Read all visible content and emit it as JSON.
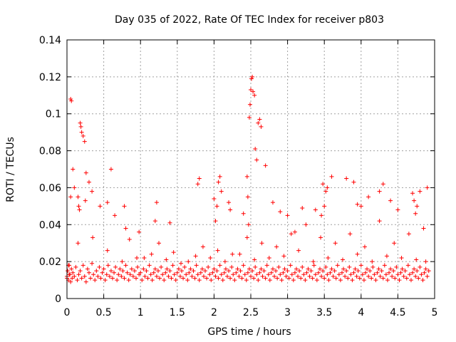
{
  "chart_data": {
    "type": "scatter",
    "title": "Day 035 of 2022, Rate Of TEC Index for receiver p803",
    "xlabel": "GPS time / hours",
    "ylabel": "ROTI / TECUs",
    "xlim": [
      0,
      5
    ],
    "ylim": [
      0,
      0.14
    ],
    "xticks": [
      0,
      0.5,
      1,
      1.5,
      2,
      2.5,
      3,
      3.5,
      4,
      4.5,
      5
    ],
    "xtick_labels": [
      "0",
      "0.5",
      "1",
      "1.5",
      "2",
      "2.5",
      "3",
      "3.5",
      "4",
      "4.5",
      "5"
    ],
    "yticks": [
      0,
      0.02,
      0.04,
      0.06,
      0.08,
      0.1,
      0.12,
      0.14
    ],
    "ytick_labels": [
      "0",
      "0.02",
      "0.04",
      "0.06",
      "0.08",
      "0.1",
      "0.12",
      "0.14"
    ],
    "grid": true,
    "marker": "+",
    "color": "#ff0000",
    "series": [
      {
        "name": "p803",
        "x": [
          0.0,
          0.01,
          0.02,
          0.03,
          0.04,
          0.05,
          0.06,
          0.07,
          0.08,
          0.1,
          0.12,
          0.14,
          0.16,
          0.18,
          0.2,
          0.22,
          0.24,
          0.26,
          0.28,
          0.3,
          0.32,
          0.34,
          0.36,
          0.38,
          0.4,
          0.42,
          0.44,
          0.46,
          0.48,
          0.5,
          0.52,
          0.54,
          0.56,
          0.58,
          0.6,
          0.62,
          0.64,
          0.66,
          0.68,
          0.7,
          0.72,
          0.74,
          0.76,
          0.78,
          0.8,
          0.82,
          0.84,
          0.86,
          0.88,
          0.9,
          0.92,
          0.94,
          0.96,
          0.98,
          1.0,
          1.02,
          1.04,
          1.06,
          1.08,
          1.1,
          1.12,
          1.14,
          1.16,
          1.18,
          1.2,
          1.22,
          1.24,
          1.26,
          1.28,
          1.3,
          1.32,
          1.34,
          1.36,
          1.38,
          1.4,
          1.42,
          1.44,
          1.46,
          1.48,
          1.5,
          1.52,
          1.54,
          1.56,
          1.58,
          1.6,
          1.62,
          1.64,
          1.66,
          1.68,
          1.7,
          1.72,
          1.74,
          1.76,
          1.78,
          1.8,
          1.82,
          1.84,
          1.86,
          1.88,
          1.9,
          1.92,
          1.94,
          1.96,
          1.98,
          2.0,
          2.02,
          2.04,
          2.06,
          2.08,
          2.1,
          2.12,
          2.14,
          2.16,
          2.18,
          2.2,
          2.22,
          2.24,
          2.26,
          2.28,
          2.3,
          2.32,
          2.34,
          2.36,
          2.38,
          2.4,
          2.42,
          2.44,
          2.46,
          2.48,
          2.5,
          2.52,
          2.54,
          2.56,
          2.58,
          2.6,
          2.62,
          2.64,
          2.66,
          2.68,
          2.7,
          2.72,
          2.74,
          2.76,
          2.78,
          2.8,
          2.82,
          2.84,
          2.86,
          2.88,
          2.9,
          2.92,
          2.94,
          2.96,
          2.98,
          3.0,
          3.02,
          3.04,
          3.06,
          3.08,
          3.1,
          3.12,
          3.14,
          3.16,
          3.18,
          3.2,
          3.22,
          3.24,
          3.26,
          3.28,
          3.3,
          3.32,
          3.34,
          3.36,
          3.38,
          3.4,
          3.42,
          3.44,
          3.46,
          3.48,
          3.5,
          3.52,
          3.54,
          3.56,
          3.58,
          3.6,
          3.62,
          3.64,
          3.66,
          3.68,
          3.7,
          3.72,
          3.74,
          3.76,
          3.78,
          3.8,
          3.82,
          3.84,
          3.86,
          3.88,
          3.9,
          3.92,
          3.94,
          3.96,
          3.98,
          4.0,
          4.02,
          4.04,
          4.06,
          4.08,
          4.1,
          4.12,
          4.14,
          4.16,
          4.18,
          4.2,
          4.22,
          4.24,
          4.26,
          4.28,
          4.3,
          4.32,
          4.34,
          4.36,
          4.38,
          4.4,
          4.42,
          4.44,
          4.46,
          4.48,
          4.5,
          4.52,
          4.54,
          4.56,
          4.58,
          4.6,
          4.62,
          4.64,
          4.66,
          4.68,
          4.7,
          4.72,
          4.74,
          4.76,
          4.78,
          4.8,
          4.82,
          4.84,
          4.86,
          4.88,
          4.9,
          4.92,
          0.0,
          0.02,
          0.03,
          0.05,
          0.06,
          0.08,
          0.1,
          0.15,
          0.16,
          0.17,
          0.18,
          0.19,
          0.2,
          0.22,
          0.24,
          0.26,
          0.3,
          0.34,
          0.55,
          0.6,
          0.78,
          0.8,
          0.98,
          1.2,
          1.22,
          1.4,
          1.78,
          1.8,
          2.0,
          2.02,
          2.04,
          2.06,
          2.08,
          2.1,
          2.2,
          2.22,
          2.4,
          2.45,
          2.46,
          2.47,
          2.48,
          2.49,
          2.5,
          2.51,
          2.52,
          2.53,
          2.55,
          2.56,
          2.58,
          2.6,
          2.62,
          2.64,
          2.7,
          2.8,
          2.9,
          3.0,
          3.1,
          3.2,
          3.38,
          3.46,
          3.48,
          3.5,
          3.52,
          3.54,
          3.6,
          3.8,
          3.9,
          3.95,
          4.0,
          4.1,
          4.25,
          4.3,
          4.4,
          4.5,
          4.7,
          4.72,
          4.74,
          4.76,
          4.8,
          4.9,
          0.05,
          0.25,
          0.45,
          0.65,
          0.85,
          1.05,
          1.25,
          1.45,
          1.65,
          1.85,
          2.05,
          2.25,
          2.45,
          2.65,
          2.85,
          3.05,
          3.25,
          3.45,
          3.65,
          3.85,
          4.05,
          4.25,
          4.45,
          4.65,
          4.85,
          0.15,
          0.35,
          0.55,
          0.75,
          0.95,
          1.15,
          1.35,
          1.55,
          1.75,
          1.95,
          2.15,
          2.35,
          2.55,
          2.75,
          2.95,
          3.15,
          3.35,
          3.55,
          3.75,
          3.95,
          4.15,
          4.35,
          4.55,
          4.75,
          4.88
        ],
        "y": [
          0.012,
          0.015,
          0.01,
          0.018,
          0.013,
          0.009,
          0.016,
          0.011,
          0.014,
          0.012,
          0.017,
          0.01,
          0.013,
          0.015,
          0.011,
          0.018,
          0.012,
          0.009,
          0.016,
          0.014,
          0.011,
          0.019,
          0.013,
          0.01,
          0.015,
          0.012,
          0.017,
          0.011,
          0.014,
          0.016,
          0.01,
          0.013,
          0.018,
          0.012,
          0.015,
          0.011,
          0.014,
          0.017,
          0.01,
          0.013,
          0.016,
          0.012,
          0.015,
          0.011,
          0.018,
          0.014,
          0.01,
          0.013,
          0.016,
          0.012,
          0.015,
          0.011,
          0.017,
          0.013,
          0.014,
          0.01,
          0.016,
          0.012,
          0.015,
          0.011,
          0.018,
          0.013,
          0.01,
          0.014,
          0.016,
          0.012,
          0.015,
          0.011,
          0.017,
          0.013,
          0.01,
          0.014,
          0.016,
          0.012,
          0.015,
          0.011,
          0.018,
          0.013,
          0.01,
          0.014,
          0.016,
          0.012,
          0.015,
          0.011,
          0.017,
          0.013,
          0.01,
          0.014,
          0.016,
          0.012,
          0.015,
          0.011,
          0.018,
          0.013,
          0.01,
          0.014,
          0.016,
          0.012,
          0.015,
          0.011,
          0.017,
          0.013,
          0.01,
          0.014,
          0.016,
          0.012,
          0.015,
          0.011,
          0.018,
          0.013,
          0.01,
          0.014,
          0.016,
          0.012,
          0.015,
          0.011,
          0.017,
          0.013,
          0.01,
          0.014,
          0.016,
          0.012,
          0.015,
          0.011,
          0.018,
          0.013,
          0.01,
          0.014,
          0.016,
          0.012,
          0.015,
          0.011,
          0.017,
          0.013,
          0.01,
          0.014,
          0.016,
          0.012,
          0.015,
          0.011,
          0.018,
          0.013,
          0.01,
          0.014,
          0.016,
          0.012,
          0.015,
          0.011,
          0.017,
          0.013,
          0.01,
          0.014,
          0.016,
          0.012,
          0.015,
          0.011,
          0.018,
          0.013,
          0.01,
          0.014,
          0.016,
          0.012,
          0.015,
          0.011,
          0.017,
          0.013,
          0.01,
          0.014,
          0.016,
          0.012,
          0.015,
          0.011,
          0.018,
          0.013,
          0.01,
          0.014,
          0.016,
          0.012,
          0.015,
          0.011,
          0.017,
          0.013,
          0.01,
          0.014,
          0.016,
          0.012,
          0.015,
          0.011,
          0.018,
          0.013,
          0.01,
          0.014,
          0.016,
          0.012,
          0.015,
          0.011,
          0.017,
          0.013,
          0.01,
          0.014,
          0.016,
          0.012,
          0.015,
          0.011,
          0.018,
          0.013,
          0.01,
          0.014,
          0.016,
          0.012,
          0.015,
          0.011,
          0.017,
          0.013,
          0.01,
          0.014,
          0.016,
          0.012,
          0.015,
          0.011,
          0.018,
          0.013,
          0.01,
          0.014,
          0.016,
          0.012,
          0.015,
          0.011,
          0.017,
          0.013,
          0.01,
          0.014,
          0.016,
          0.012,
          0.015,
          0.011,
          0.018,
          0.013,
          0.01,
          0.014,
          0.016,
          0.012,
          0.015,
          0.011,
          0.017,
          0.013,
          0.01,
          0.014,
          0.016,
          0.012,
          0.015,
          0.011,
          0.018,
          0.013,
          0.108,
          0.107,
          0.07,
          0.06,
          0.055,
          0.05,
          0.048,
          0.095,
          0.093,
          0.09,
          0.088,
          0.085,
          0.068,
          0.063,
          0.058,
          0.052,
          0.07,
          0.05,
          0.038,
          0.036,
          0.042,
          0.052,
          0.041,
          0.062,
          0.065,
          0.054,
          0.042,
          0.05,
          0.063,
          0.066,
          0.058,
          0.052,
          0.048,
          0.046,
          0.066,
          0.055,
          0.04,
          0.098,
          0.105,
          0.113,
          0.119,
          0.12,
          0.112,
          0.11,
          0.081,
          0.075,
          0.095,
          0.097,
          0.093,
          0.072,
          0.052,
          0.047,
          0.045,
          0.036,
          0.049,
          0.048,
          0.045,
          0.062,
          0.05,
          0.058,
          0.06,
          0.066,
          0.065,
          0.063,
          0.051,
          0.05,
          0.055,
          0.058,
          0.062,
          0.053,
          0.048,
          0.057,
          0.053,
          0.046,
          0.05,
          0.058,
          0.06,
          0.055,
          0.053,
          0.05,
          0.045,
          0.032,
          0.022,
          0.03,
          0.025,
          0.02,
          0.028,
          0.026,
          0.024,
          0.033,
          0.03,
          0.028,
          0.035,
          0.04,
          0.033,
          0.03,
          0.035,
          0.028,
          0.042,
          0.03,
          0.035,
          0.038,
          0.03,
          0.033,
          0.026,
          0.02,
          0.022,
          0.024,
          0.021,
          0.019,
          0.023,
          0.022,
          0.02,
          0.024,
          0.021,
          0.022,
          0.023,
          0.026,
          0.02,
          0.022,
          0.021,
          0.024,
          0.02,
          0.023,
          0.022,
          0.021,
          0.02
        ]
      }
    ]
  }
}
